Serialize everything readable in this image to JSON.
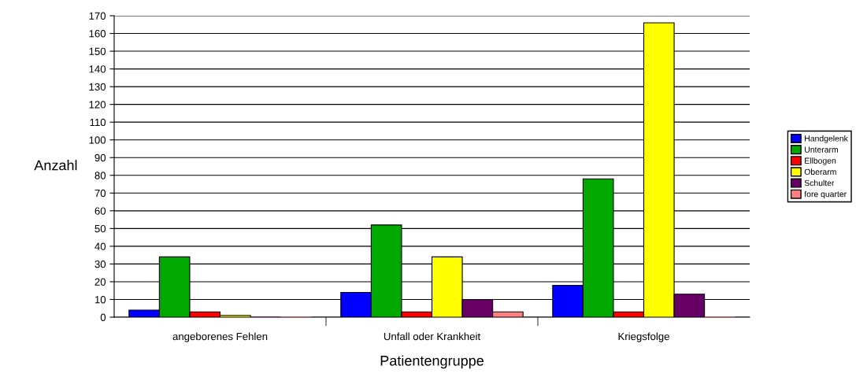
{
  "chart_data": {
    "type": "bar",
    "xlabel": "Patientengruppe",
    "ylabel": "Anzahl",
    "categories": [
      "angeborenes Fehlen",
      "Unfall oder Krankheit",
      "Kriegsfolge"
    ],
    "series": [
      {
        "name": "Handgelenk",
        "color": "#0000ff",
        "values": [
          4,
          14,
          18
        ]
      },
      {
        "name": "Unterarm",
        "color": "#00a800",
        "values": [
          34,
          52,
          78
        ]
      },
      {
        "name": "Ellbogen",
        "color": "#ff0000",
        "values": [
          3,
          3,
          3
        ]
      },
      {
        "name": "Oberarm",
        "color": "#ffff00",
        "values": [
          1,
          34,
          166
        ]
      },
      {
        "name": "Schulter",
        "color": "#660066",
        "values": [
          0,
          10,
          13
        ]
      },
      {
        "name": "fore quarter",
        "color": "#ff8080",
        "values": [
          0,
          3,
          0
        ]
      }
    ],
    "ylim": [
      0,
      170
    ],
    "yticks": [
      0,
      10,
      20,
      30,
      40,
      50,
      60,
      70,
      80,
      90,
      100,
      110,
      120,
      130,
      140,
      150,
      160,
      170
    ],
    "grid": "y",
    "legend": "right"
  }
}
